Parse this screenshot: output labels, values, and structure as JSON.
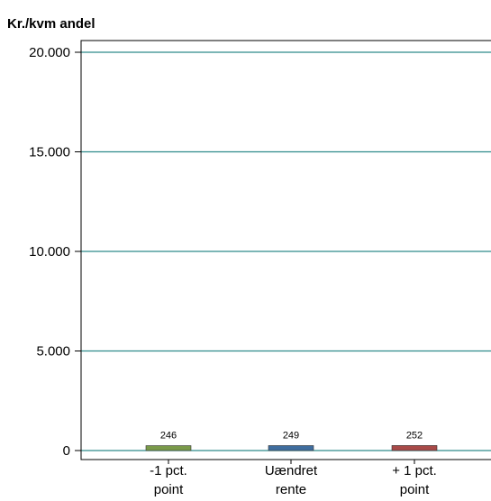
{
  "chart_data": {
    "type": "bar",
    "ylabel": "Kr./kvm andel",
    "categories": [
      [
        "-1 pct.",
        "point"
      ],
      [
        "Uændret",
        "rente"
      ],
      [
        "+ 1 pct.",
        "point"
      ]
    ],
    "values": [
      246,
      249,
      252
    ],
    "data_labels": [
      "246",
      "249",
      "252"
    ],
    "colors": [
      "#7a9a4a",
      "#3f6d9e",
      "#a84a48"
    ],
    "ylim": [
      0,
      20000
    ],
    "yticks": [
      0,
      5000,
      10000,
      15000,
      20000
    ],
    "ytick_labels": [
      "0",
      "5.000",
      "10.000",
      "15.000",
      "20.000"
    ],
    "grid": true,
    "grid_color": "#2e8b8b"
  }
}
